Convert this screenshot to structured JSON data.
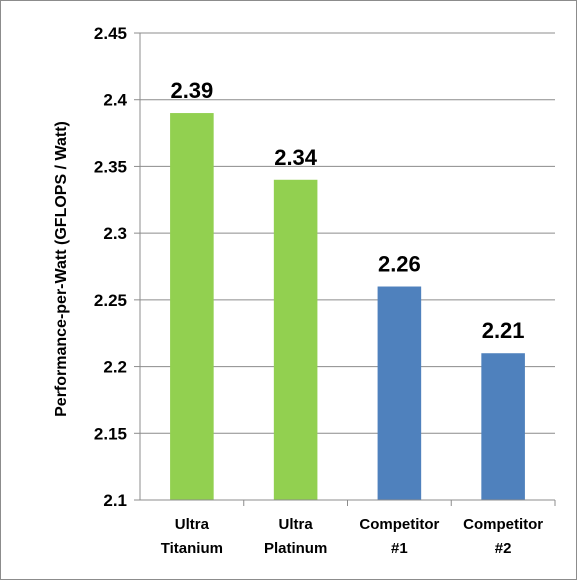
{
  "chart_data": {
    "type": "bar",
    "title": "",
    "xlabel": "",
    "ylabel": "Performance-per-Watt (GFLOPS / Watt)",
    "ylim": [
      2.1,
      2.45
    ],
    "yticks": [
      "2.1",
      "2.15",
      "2.2",
      "2.25",
      "2.3",
      "2.35",
      "2.4",
      "2.45"
    ],
    "categories": [
      [
        "Ultra",
        "Titanium"
      ],
      [
        "Ultra",
        "Platinum"
      ],
      [
        "Competitor",
        "#1"
      ],
      [
        "Competitor",
        "#2"
      ]
    ],
    "values": [
      2.39,
      2.34,
      2.26,
      2.21
    ],
    "value_labels": [
      "2.39",
      "2.34",
      "2.26",
      "2.21"
    ],
    "colors": [
      "#92d050",
      "#92d050",
      "#4f81bd",
      "#4f81bd"
    ],
    "grid": true,
    "legend": "none"
  }
}
